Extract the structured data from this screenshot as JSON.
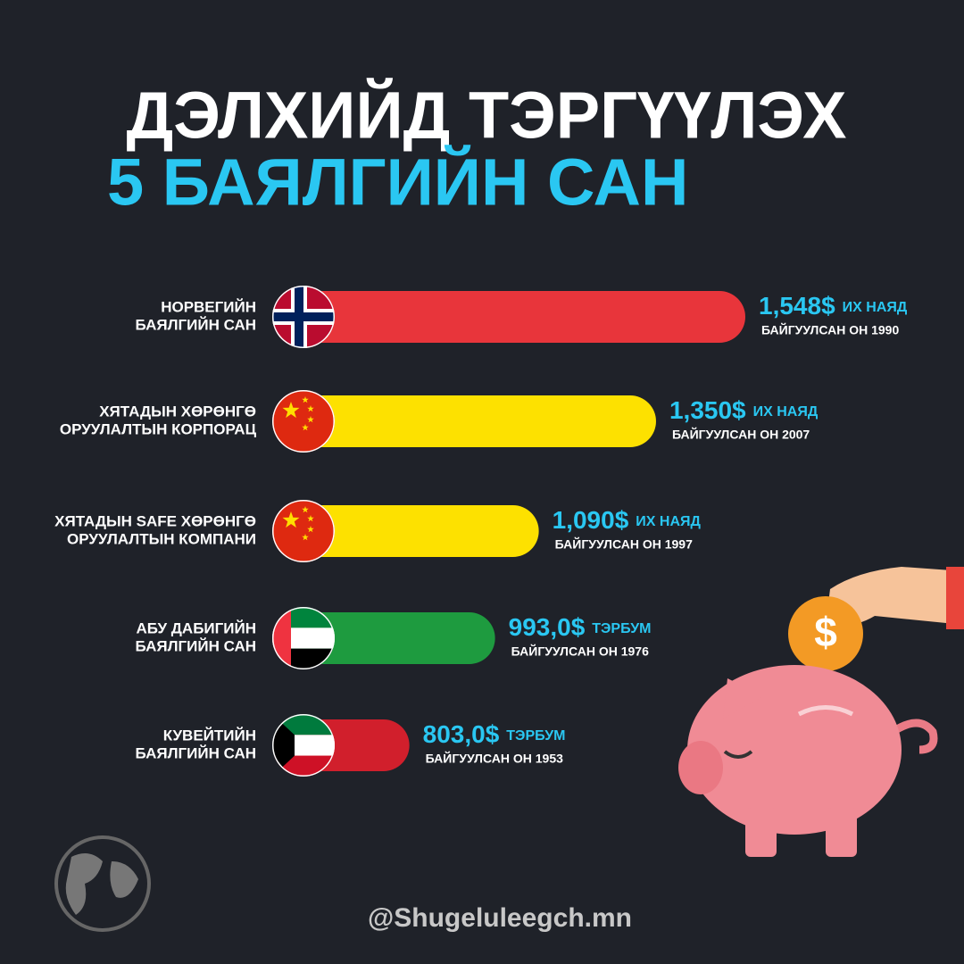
{
  "chart_data": {
    "type": "bar",
    "title": "ДЭЛХИЙД ТЭРГҮҮЛЭХ",
    "subtitle": "5 БАЯЛГИЙН САН",
    "categories": [
      [
        "НОРВЕГИЙН",
        "БАЯЛГИЙН САН"
      ],
      [
        "ХЯТАДЫН ХӨРӨНГӨ",
        "ОРУУЛАЛТЫН КОРПОРАЦ"
      ],
      [
        "ХЯТАДЫН SAFE ХӨРӨНГӨ",
        "ОРУУЛАЛТЫН КОМПАНИ"
      ],
      [
        "АБУ ДАБИГИЙН",
        "БАЯЛГИЙН САН"
      ],
      [
        "КУВЕЙТИЙН",
        "БАЯЛГИЙН САН"
      ]
    ],
    "values": [
      1548,
      1350,
      1090,
      993.0,
      803.0
    ],
    "value_labels": [
      "1,548$",
      "1,350$",
      "1,090$",
      "993,0$",
      "803,0$"
    ],
    "units": [
      "ИХ НАЯД",
      "ИХ НАЯД",
      "ИХ НАЯД",
      "ТЭРБУМ",
      "ТЭРБУМ"
    ],
    "founded": [
      "БАЙГУУЛСАН ОН 1990",
      "БАЙГУУЛСАН ОН 2007",
      "БАЙГУУЛСАН ОН 1997",
      "БАЙГУУЛСАН ОН 1976",
      "БАЙГУУЛСАН ОН 1953"
    ],
    "colors": [
      "#e8353b",
      "#fde100",
      "#fde100",
      "#1e9b3f",
      "#d11f2c"
    ]
  },
  "watermark": "@Shugeluleegch.mn"
}
